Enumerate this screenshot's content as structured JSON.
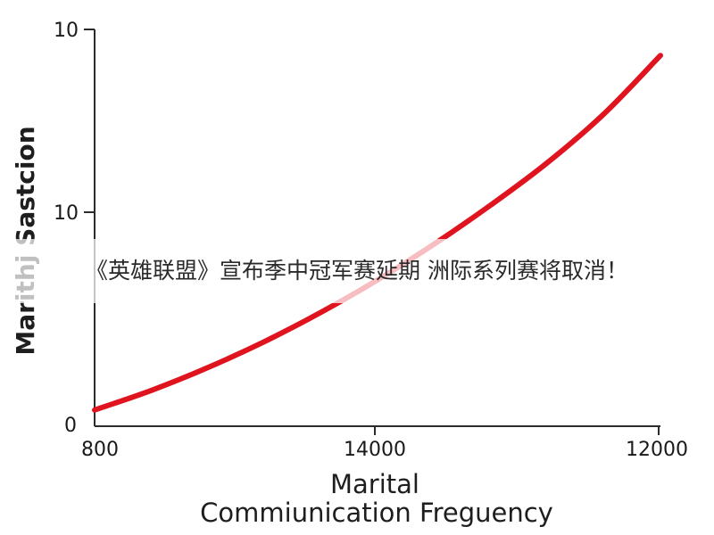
{
  "chart_data": {
    "type": "line",
    "xlabel_line1": "Marital",
    "xlabel_line2": "Commiunication Freguency",
    "ylabel": "Marithj Sastcion",
    "x_tick_labels": [
      "800",
      "14000",
      "12000"
    ],
    "y_tick_labels": [
      "0",
      "10",
      "10"
    ],
    "series": [
      {
        "color": "#e0141e",
        "x": [
          0,
          0.1,
          0.2,
          0.3,
          0.4,
          0.5,
          0.6,
          0.7,
          0.8,
          0.9,
          1.0
        ],
        "y": [
          0.05,
          0.11,
          0.18,
          0.26,
          0.35,
          0.45,
          0.56,
          0.68,
          0.81,
          0.96,
          1.14
        ]
      }
    ],
    "grid": false,
    "legend": "none"
  },
  "overlay": {
    "caption": "《英雄联盟》宣布季中冠军赛延期 洲际系列赛将取消！"
  }
}
